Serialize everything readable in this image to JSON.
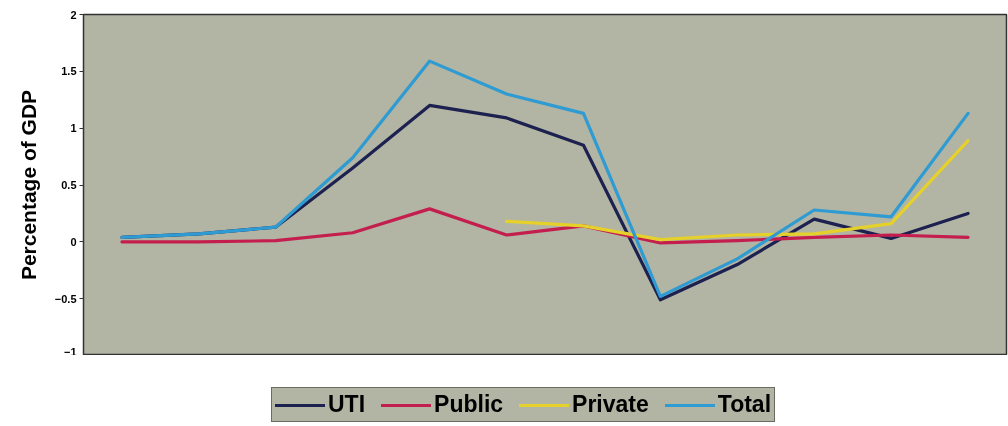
{
  "chart_data": {
    "type": "line",
    "ylabel": "Percentage of GDP",
    "categories": [
      null,
      null,
      null,
      null,
      null,
      null,
      null,
      null,
      null,
      null,
      null,
      null
    ],
    "ylim": [
      -1,
      2
    ],
    "yticks": [
      -1,
      -0.5,
      0,
      0.5,
      1,
      1.5,
      2
    ],
    "tick_labels": "y",
    "grid": false,
    "legend": "bottom",
    "series": [
      {
        "name": "UTI",
        "color": "#1c2150",
        "values": [
          0.04,
          0.07,
          0.13,
          0.65,
          1.2,
          1.09,
          0.85,
          -0.51,
          -0.2,
          0.2,
          0.03,
          0.25
        ]
      },
      {
        "name": "Public",
        "color": "#c41e4e",
        "values": [
          0,
          0,
          0.01,
          0.08,
          0.29,
          0.06,
          0.14,
          -0.01,
          0.01,
          0.04,
          0.06,
          0.04
        ]
      },
      {
        "name": "Private",
        "color": "#e6d02a",
        "values": [
          null,
          null,
          null,
          null,
          null,
          0.18,
          0.14,
          0.02,
          0.06,
          0.07,
          0.16,
          0.89
        ]
      },
      {
        "name": "Total",
        "color": "#2e9bd2",
        "values": [
          0.04,
          0.07,
          0.13,
          0.74,
          1.59,
          1.3,
          1.13,
          -0.48,
          -0.15,
          0.28,
          0.22,
          1.13
        ]
      }
    ]
  }
}
